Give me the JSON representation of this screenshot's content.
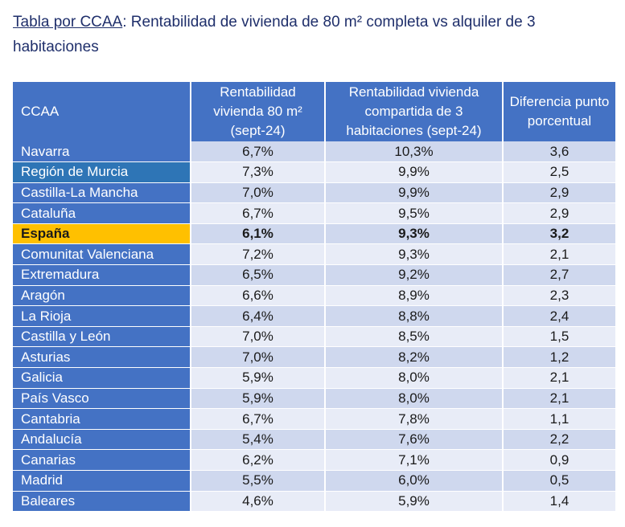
{
  "title": {
    "link_text": "Tabla por CCAA",
    "rest_text": ": Rentabilidad de vivienda de 80 m² completa vs alquiler de 3 habitaciones"
  },
  "table": {
    "headers": [
      "CCAA",
      "Rentabilidad vivienda 80 m² (sept-24)",
      "Rentabilidad vivienda compartida de 3 habitaciones (sept-24)",
      "Diferencia punto porcentual"
    ],
    "highlight_row": "España",
    "colors": {
      "header_bg": "#4472c4",
      "highlight_bg": "#ffc000",
      "band_dark": "#cfd8ee",
      "band_light": "#e8ecf7",
      "title_text": "#1f2f6b"
    },
    "rows": [
      [
        "Navarra",
        "6,7%",
        "10,3%",
        "3,6"
      ],
      [
        "Región de Murcia",
        "7,3%",
        "9,9%",
        "2,5"
      ],
      [
        "Castilla-La Mancha",
        "7,0%",
        "9,9%",
        "2,9"
      ],
      [
        "Cataluña",
        "6,7%",
        "9,5%",
        "2,9"
      ],
      [
        "España",
        "6,1%",
        "9,3%",
        "3,2"
      ],
      [
        "Comunitat Valenciana",
        "7,2%",
        "9,3%",
        "2,1"
      ],
      [
        "Extremadura",
        "6,5%",
        "9,2%",
        "2,7"
      ],
      [
        "Aragón",
        "6,6%",
        "8,9%",
        "2,3"
      ],
      [
        "La Rioja",
        "6,4%",
        "8,8%",
        "2,4"
      ],
      [
        "Castilla y León",
        "7,0%",
        "8,5%",
        "1,5"
      ],
      [
        "Asturias",
        "7,0%",
        "8,2%",
        "1,2"
      ],
      [
        "Galicia",
        "5,9%",
        "8,0%",
        "2,1"
      ],
      [
        "País Vasco",
        "5,9%",
        "8,0%",
        "2,1"
      ],
      [
        "Cantabria",
        "6,7%",
        "7,8%",
        "1,1"
      ],
      [
        "Andalucía",
        "5,4%",
        "7,6%",
        "2,2"
      ],
      [
        "Canarias",
        "6,2%",
        "7,1%",
        "0,9"
      ],
      [
        "Madrid",
        "5,5%",
        "6,0%",
        "0,5"
      ],
      [
        "Baleares",
        "4,6%",
        "5,9%",
        "1,4"
      ]
    ]
  }
}
